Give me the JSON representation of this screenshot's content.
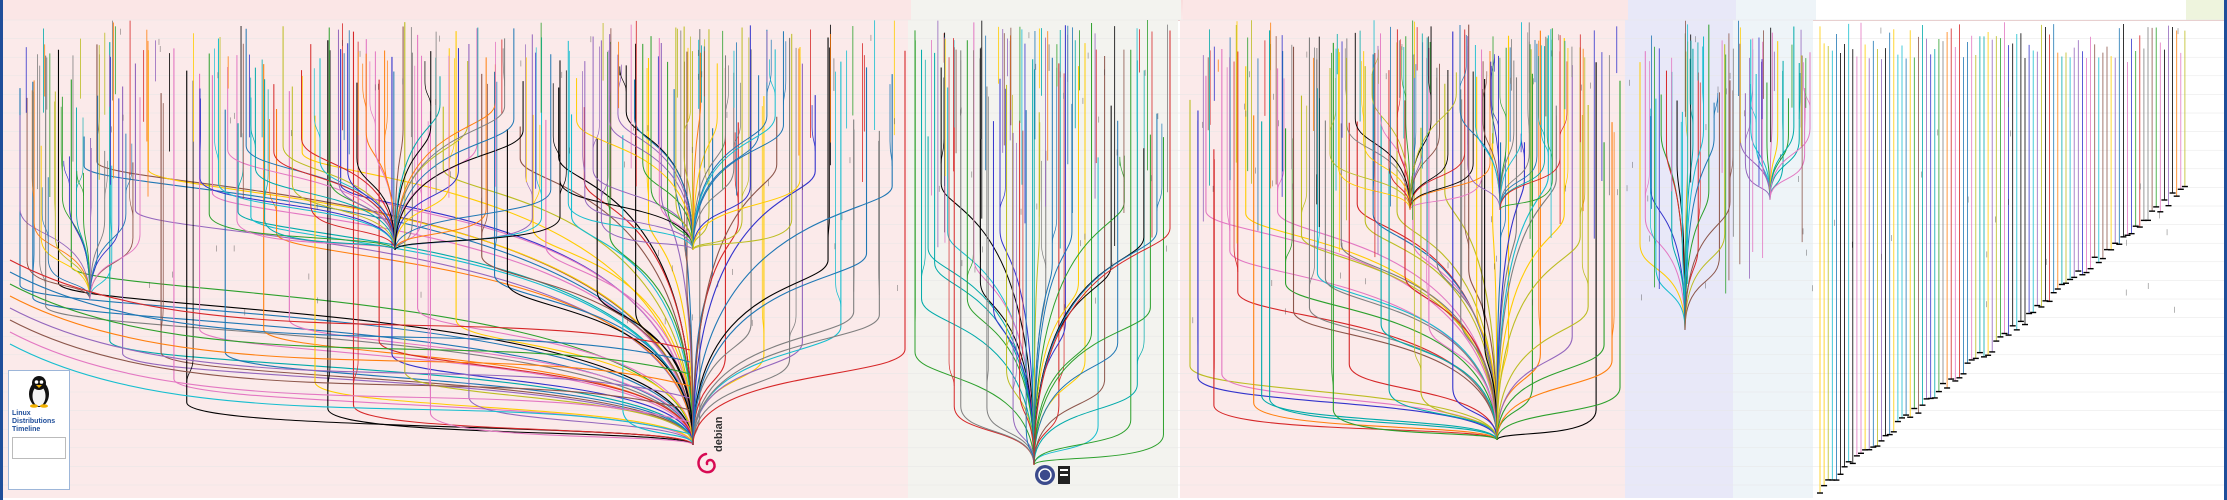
{
  "legend": {
    "title": "Linux Distributions Timeline",
    "lines": [
      "",
      "",
      "",
      ""
    ]
  },
  "logos": {
    "debian": "debian",
    "slackware": "slackware-logo",
    "tux": "tux-penguin-icon"
  },
  "colors": {
    "year_bar": "#1f4e9a",
    "debian_band": "#fbeaea",
    "slackware_band": "#f3f3ef",
    "redhat_band": "#fbeaea",
    "enoch_band": "#e8e8f8",
    "arch_band": "#eef4f8",
    "android_band": "#eef4dd"
  },
  "palette": [
    "#d62728",
    "#1f77b4",
    "#2ca02c",
    "#ff7f0e",
    "#9467bd",
    "#8c564b",
    "#e377c2",
    "#17becf",
    "#bcbd22",
    "#000000",
    "#7f7f7f",
    "#3333cc",
    "#ffcc00",
    "#00aaaa"
  ]
}
